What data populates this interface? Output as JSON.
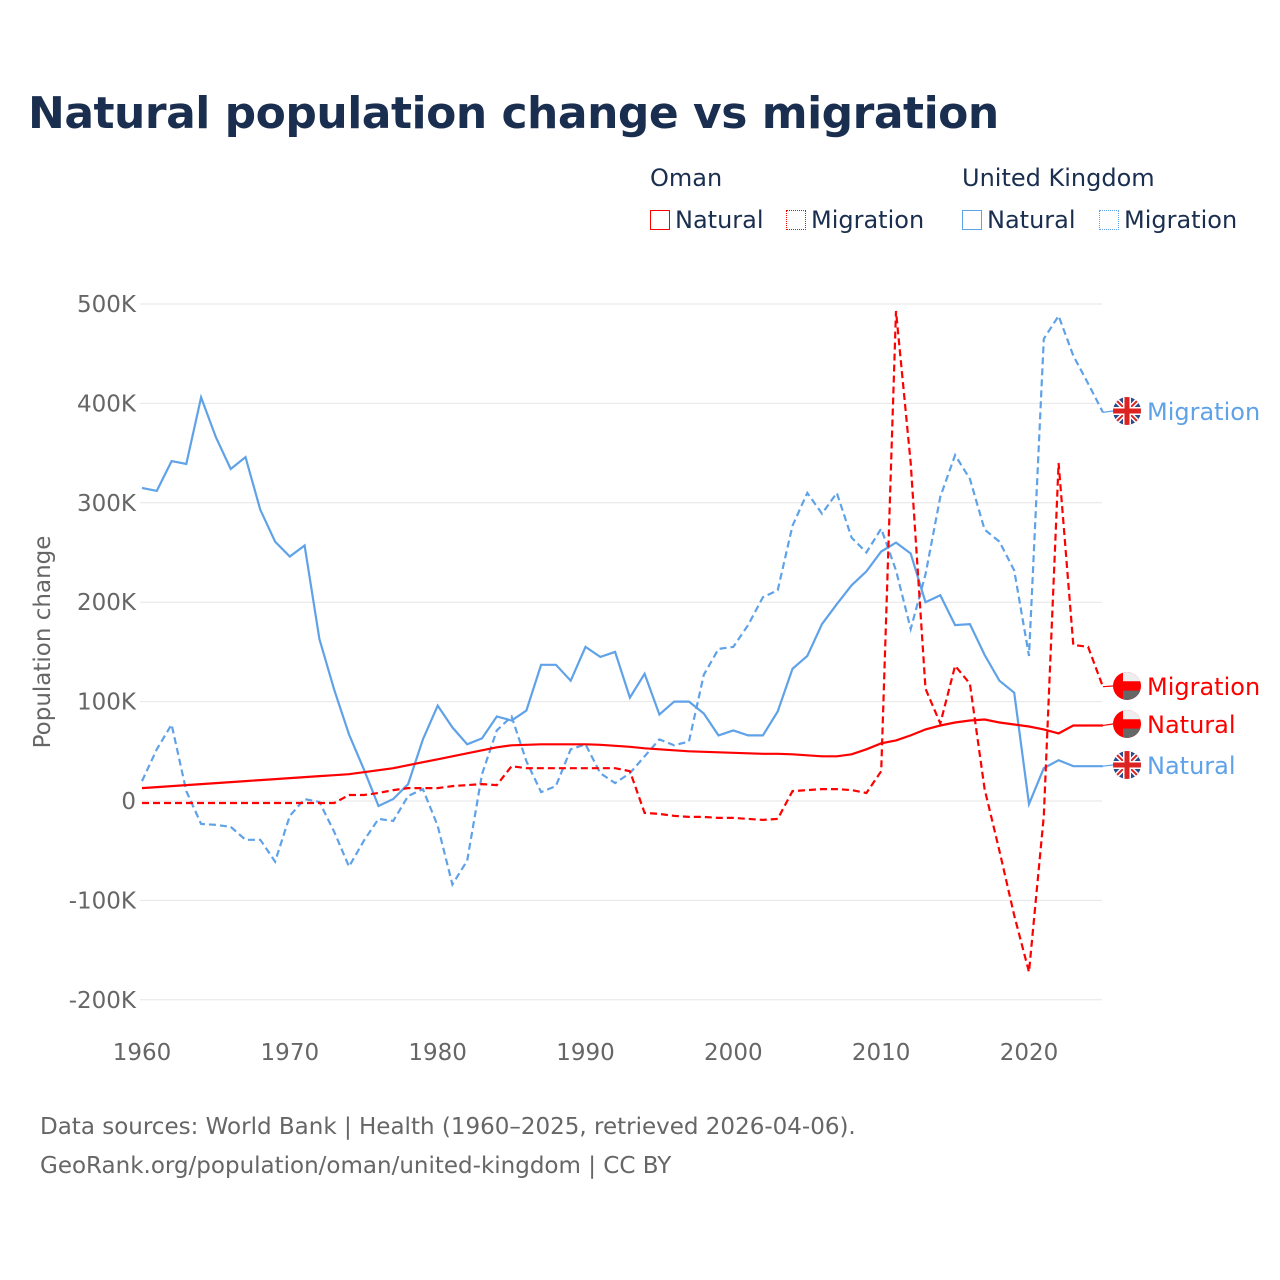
{
  "title": "Natural population change vs migration",
  "legend": {
    "groups": [
      {
        "name": "Oman",
        "items": [
          {
            "label": "Natural",
            "style": "solid",
            "color": "#ff0000"
          },
          {
            "label": "Migration",
            "style": "dotted",
            "color": "#ff0000"
          }
        ]
      },
      {
        "name": "United Kingdom",
        "items": [
          {
            "label": "Natural",
            "style": "solid",
            "color": "#5fa2e8"
          },
          {
            "label": "Migration",
            "style": "dotted",
            "color": "#5fa2e8"
          }
        ]
      }
    ]
  },
  "source": {
    "line1": "Data sources: World Bank | Health (1960–2025, retrieved 2026-04-06).",
    "line2": "GeoRank.org/population/oman/united-kingdom | CC BY"
  },
  "chart_data": {
    "type": "line",
    "title": "Natural population change vs migration",
    "xlabel": "",
    "ylabel": "Population change",
    "xlim": [
      1960,
      2025
    ],
    "ylim": [
      -200000,
      500000
    ],
    "xticks": [
      1960,
      1970,
      1980,
      1990,
      2000,
      2010,
      2020
    ],
    "xtick_labels": [
      "1960",
      "1970",
      "1980",
      "1990",
      "2000",
      "2010",
      "2020"
    ],
    "yticks": [
      -200000,
      -100000,
      0,
      100000,
      200000,
      300000,
      400000,
      500000
    ],
    "ytick_labels": [
      "-200K",
      "-100K",
      "0",
      "100K",
      "200K",
      "300K",
      "400K",
      "500K"
    ],
    "grid": true,
    "legend_position": "top-right",
    "x_start": 1960,
    "series": [
      {
        "name": "United Kingdom Natural",
        "country": "United Kingdom",
        "end_label": "Natural",
        "color": "#5fa2e8",
        "dash": false,
        "flag": "uk",
        "values": [
          315,
          312,
          342,
          339,
          406,
          366,
          334,
          346,
          293,
          261,
          246,
          257,
          163,
          112,
          67,
          32,
          -5,
          2,
          17,
          62,
          96,
          74,
          57,
          63,
          85,
          81,
          91,
          137,
          137,
          121,
          155,
          145,
          150,
          104,
          128,
          87,
          100,
          100,
          88,
          66,
          71,
          66,
          66,
          90,
          133,
          146,
          178,
          198,
          217,
          231,
          251,
          260,
          249,
          200,
          207,
          177,
          178,
          147,
          121,
          109,
          -3,
          33,
          41,
          35,
          35,
          35
        ]
      },
      {
        "name": "United Kingdom Migration",
        "country": "United Kingdom",
        "end_label": "Migration",
        "color": "#5fa2e8",
        "dash": true,
        "flag": "uk",
        "values": [
          20,
          52,
          77,
          10,
          -23,
          -24,
          -26,
          -39,
          -39,
          -61,
          -15,
          2,
          -1,
          -31,
          -66,
          -40,
          -18,
          -20,
          5,
          12,
          -25,
          -84,
          -60,
          27,
          71,
          85,
          40,
          9,
          15,
          52,
          57,
          28,
          18,
          28,
          45,
          62,
          56,
          60,
          127,
          153,
          155,
          177,
          205,
          212,
          277,
          310,
          289,
          310,
          265,
          250,
          274,
          232,
          173,
          228,
          306,
          348,
          324,
          273,
          261,
          232,
          146,
          465,
          488,
          448,
          420,
          391
        ]
      },
      {
        "name": "Oman Natural",
        "country": "Oman",
        "end_label": "Natural",
        "color": "#ff0000",
        "dash": false,
        "flag": "oman",
        "values": [
          13,
          14,
          15,
          16,
          17,
          18,
          19,
          20,
          21,
          22,
          23,
          24,
          25,
          26,
          27,
          29,
          31,
          33,
          36,
          39,
          42,
          45,
          48,
          51,
          54,
          56,
          56.5,
          57,
          57,
          57,
          57,
          56.5,
          55.5,
          54.5,
          53,
          52,
          51,
          50,
          49.5,
          49,
          48.5,
          48,
          47.5,
          47.5,
          47,
          46,
          45,
          45,
          47,
          52,
          58,
          61,
          66,
          72,
          76,
          79,
          81,
          82,
          79,
          77,
          75,
          72,
          68,
          76,
          76,
          76
        ]
      },
      {
        "name": "Oman Migration",
        "country": "Oman",
        "end_label": "Migration",
        "color": "#ff0000",
        "dash": true,
        "flag": "oman",
        "values": [
          -2,
          -2,
          -2,
          -2,
          -2,
          -2,
          -2,
          -2,
          -2,
          -2,
          -2,
          -2,
          -2,
          -2,
          6,
          6,
          8,
          11,
          13,
          13,
          13,
          15,
          16,
          17,
          16,
          35,
          33,
          33,
          33,
          33,
          33,
          33,
          33,
          30,
          -12,
          -13,
          -15,
          -16,
          -16,
          -17,
          -17,
          -18,
          -19,
          -18,
          10,
          11,
          12,
          12,
          11,
          8,
          30,
          493,
          340,
          113,
          78,
          136,
          118,
          12,
          -50,
          -115,
          -172,
          -15,
          340,
          157,
          155,
          115
        ]
      }
    ],
    "value_unit": "thousands"
  }
}
